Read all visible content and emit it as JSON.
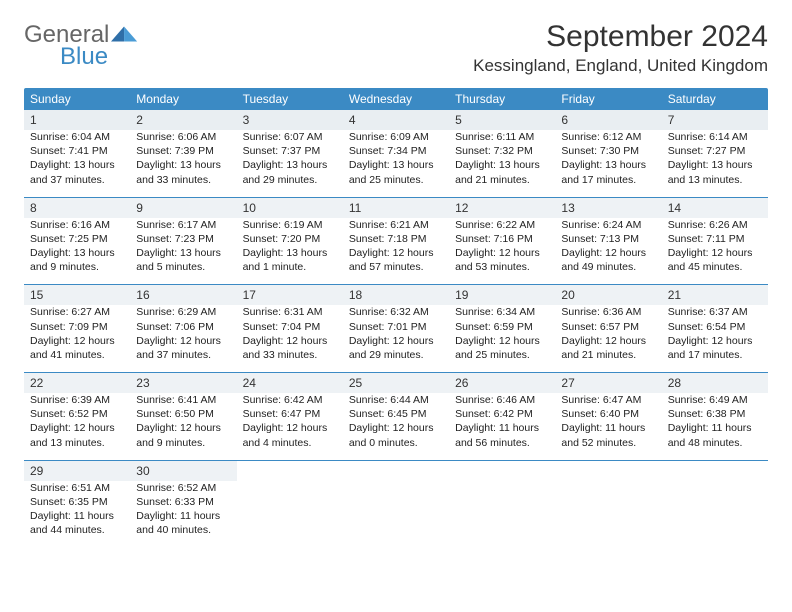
{
  "brand": {
    "line1": "General",
    "line2": "Blue"
  },
  "title": "September 2024",
  "location": "Kessingland, England, United Kingdom",
  "colors": {
    "accent": "#3b8ac4",
    "daybg": "#eef2f5",
    "text": "#222222"
  },
  "weekdays": [
    "Sunday",
    "Monday",
    "Tuesday",
    "Wednesday",
    "Thursday",
    "Friday",
    "Saturday"
  ],
  "weeks": [
    [
      {
        "n": "1",
        "sr": "Sunrise: 6:04 AM",
        "ss": "Sunset: 7:41 PM",
        "d1": "Daylight: 13 hours",
        "d2": "and 37 minutes."
      },
      {
        "n": "2",
        "sr": "Sunrise: 6:06 AM",
        "ss": "Sunset: 7:39 PM",
        "d1": "Daylight: 13 hours",
        "d2": "and 33 minutes."
      },
      {
        "n": "3",
        "sr": "Sunrise: 6:07 AM",
        "ss": "Sunset: 7:37 PM",
        "d1": "Daylight: 13 hours",
        "d2": "and 29 minutes."
      },
      {
        "n": "4",
        "sr": "Sunrise: 6:09 AM",
        "ss": "Sunset: 7:34 PM",
        "d1": "Daylight: 13 hours",
        "d2": "and 25 minutes."
      },
      {
        "n": "5",
        "sr": "Sunrise: 6:11 AM",
        "ss": "Sunset: 7:32 PM",
        "d1": "Daylight: 13 hours",
        "d2": "and 21 minutes."
      },
      {
        "n": "6",
        "sr": "Sunrise: 6:12 AM",
        "ss": "Sunset: 7:30 PM",
        "d1": "Daylight: 13 hours",
        "d2": "and 17 minutes."
      },
      {
        "n": "7",
        "sr": "Sunrise: 6:14 AM",
        "ss": "Sunset: 7:27 PM",
        "d1": "Daylight: 13 hours",
        "d2": "and 13 minutes."
      }
    ],
    [
      {
        "n": "8",
        "sr": "Sunrise: 6:16 AM",
        "ss": "Sunset: 7:25 PM",
        "d1": "Daylight: 13 hours",
        "d2": "and 9 minutes."
      },
      {
        "n": "9",
        "sr": "Sunrise: 6:17 AM",
        "ss": "Sunset: 7:23 PM",
        "d1": "Daylight: 13 hours",
        "d2": "and 5 minutes."
      },
      {
        "n": "10",
        "sr": "Sunrise: 6:19 AM",
        "ss": "Sunset: 7:20 PM",
        "d1": "Daylight: 13 hours",
        "d2": "and 1 minute."
      },
      {
        "n": "11",
        "sr": "Sunrise: 6:21 AM",
        "ss": "Sunset: 7:18 PM",
        "d1": "Daylight: 12 hours",
        "d2": "and 57 minutes."
      },
      {
        "n": "12",
        "sr": "Sunrise: 6:22 AM",
        "ss": "Sunset: 7:16 PM",
        "d1": "Daylight: 12 hours",
        "d2": "and 53 minutes."
      },
      {
        "n": "13",
        "sr": "Sunrise: 6:24 AM",
        "ss": "Sunset: 7:13 PM",
        "d1": "Daylight: 12 hours",
        "d2": "and 49 minutes."
      },
      {
        "n": "14",
        "sr": "Sunrise: 6:26 AM",
        "ss": "Sunset: 7:11 PM",
        "d1": "Daylight: 12 hours",
        "d2": "and 45 minutes."
      }
    ],
    [
      {
        "n": "15",
        "sr": "Sunrise: 6:27 AM",
        "ss": "Sunset: 7:09 PM",
        "d1": "Daylight: 12 hours",
        "d2": "and 41 minutes."
      },
      {
        "n": "16",
        "sr": "Sunrise: 6:29 AM",
        "ss": "Sunset: 7:06 PM",
        "d1": "Daylight: 12 hours",
        "d2": "and 37 minutes."
      },
      {
        "n": "17",
        "sr": "Sunrise: 6:31 AM",
        "ss": "Sunset: 7:04 PM",
        "d1": "Daylight: 12 hours",
        "d2": "and 33 minutes."
      },
      {
        "n": "18",
        "sr": "Sunrise: 6:32 AM",
        "ss": "Sunset: 7:01 PM",
        "d1": "Daylight: 12 hours",
        "d2": "and 29 minutes."
      },
      {
        "n": "19",
        "sr": "Sunrise: 6:34 AM",
        "ss": "Sunset: 6:59 PM",
        "d1": "Daylight: 12 hours",
        "d2": "and 25 minutes."
      },
      {
        "n": "20",
        "sr": "Sunrise: 6:36 AM",
        "ss": "Sunset: 6:57 PM",
        "d1": "Daylight: 12 hours",
        "d2": "and 21 minutes."
      },
      {
        "n": "21",
        "sr": "Sunrise: 6:37 AM",
        "ss": "Sunset: 6:54 PM",
        "d1": "Daylight: 12 hours",
        "d2": "and 17 minutes."
      }
    ],
    [
      {
        "n": "22",
        "sr": "Sunrise: 6:39 AM",
        "ss": "Sunset: 6:52 PM",
        "d1": "Daylight: 12 hours",
        "d2": "and 13 minutes."
      },
      {
        "n": "23",
        "sr": "Sunrise: 6:41 AM",
        "ss": "Sunset: 6:50 PM",
        "d1": "Daylight: 12 hours",
        "d2": "and 9 minutes."
      },
      {
        "n": "24",
        "sr": "Sunrise: 6:42 AM",
        "ss": "Sunset: 6:47 PM",
        "d1": "Daylight: 12 hours",
        "d2": "and 4 minutes."
      },
      {
        "n": "25",
        "sr": "Sunrise: 6:44 AM",
        "ss": "Sunset: 6:45 PM",
        "d1": "Daylight: 12 hours",
        "d2": "and 0 minutes."
      },
      {
        "n": "26",
        "sr": "Sunrise: 6:46 AM",
        "ss": "Sunset: 6:42 PM",
        "d1": "Daylight: 11 hours",
        "d2": "and 56 minutes."
      },
      {
        "n": "27",
        "sr": "Sunrise: 6:47 AM",
        "ss": "Sunset: 6:40 PM",
        "d1": "Daylight: 11 hours",
        "d2": "and 52 minutes."
      },
      {
        "n": "28",
        "sr": "Sunrise: 6:49 AM",
        "ss": "Sunset: 6:38 PM",
        "d1": "Daylight: 11 hours",
        "d2": "and 48 minutes."
      }
    ],
    [
      {
        "n": "29",
        "sr": "Sunrise: 6:51 AM",
        "ss": "Sunset: 6:35 PM",
        "d1": "Daylight: 11 hours",
        "d2": "and 44 minutes."
      },
      {
        "n": "30",
        "sr": "Sunrise: 6:52 AM",
        "ss": "Sunset: 6:33 PM",
        "d1": "Daylight: 11 hours",
        "d2": "and 40 minutes."
      },
      null,
      null,
      null,
      null,
      null
    ]
  ]
}
